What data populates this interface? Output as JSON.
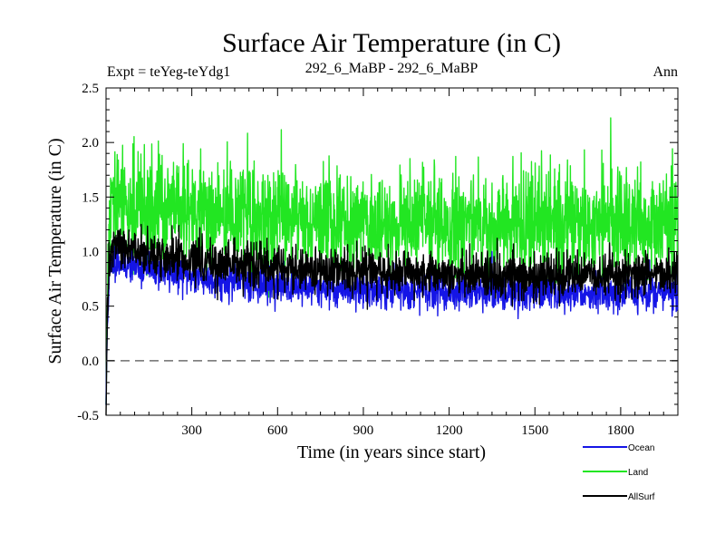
{
  "chart_data": {
    "type": "line",
    "title": "Surface Air Temperature (in C)",
    "left_label": "Expt = teYeg-teYdg1",
    "center_label": "292_6_MaBP - 292_6_MaBP",
    "right_label": "Ann",
    "xlabel": "Time (in years since start)",
    "ylabel": "Surface Air Temperature (in C)",
    "xlim": [
      0,
      2000
    ],
    "ylim": [
      -0.5,
      2.5
    ],
    "xticks": [
      300,
      600,
      900,
      1200,
      1500,
      1800
    ],
    "yticks": [
      -0.5,
      0.0,
      0.5,
      1.0,
      1.5,
      2.0,
      2.5
    ],
    "ytick_labels": [
      "-0.5",
      "0.0",
      "0.5",
      "1.0",
      "1.5",
      "2.0",
      "2.5"
    ],
    "reference_line": 0.0,
    "n_years": 2000,
    "series": [
      {
        "name": "Ocean",
        "color": "#1515e6",
        "start": -0.4,
        "early_peak": 0.92,
        "late_mean": 0.62,
        "noise": 0.08
      },
      {
        "name": "Land",
        "color": "#22e622",
        "start": -0.5,
        "early_peak": 1.45,
        "late_mean": 1.25,
        "noise": 0.24
      },
      {
        "name": "AllSurf",
        "color": "#000000",
        "start": -0.45,
        "early_peak": 1.05,
        "late_mean": 0.78,
        "noise": 0.1
      }
    ],
    "legend": [
      "Ocean",
      "Land",
      "AllSurf"
    ]
  }
}
